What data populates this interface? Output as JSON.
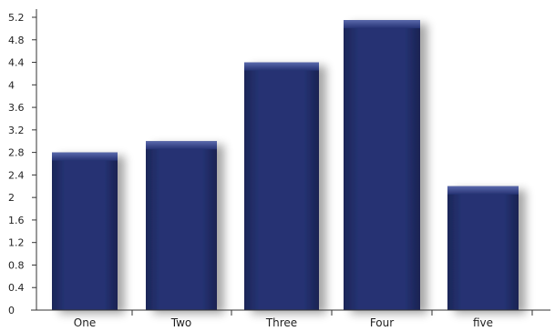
{
  "chart_data": {
    "type": "bar",
    "title": "",
    "xlabel": "",
    "ylabel": "",
    "categories": [
      "One",
      "Two",
      "Three",
      "Four",
      "five"
    ],
    "values": [
      2.8,
      3.0,
      4.4,
      5.15,
      2.2
    ],
    "ylim": [
      0,
      5.4
    ],
    "yticks": [
      0,
      0.4,
      0.8,
      1.2,
      1.6,
      2,
      2.4,
      2.8,
      3.2,
      3.6,
      4,
      4.4,
      4.8,
      5.2
    ],
    "ytick_labels": [
      "0",
      "0.4",
      "0.8",
      "1.2",
      "1.6",
      "2",
      "2.4",
      "2.8",
      "3.2",
      "3.6",
      "4",
      "4.4",
      "4.8",
      "5.2"
    ],
    "grid": false,
    "legend": "none",
    "colors": {
      "bar": "#24306a",
      "bar_top": "#4a5aa2",
      "bar_edge": "#1a2352",
      "axis": "#333333"
    }
  }
}
